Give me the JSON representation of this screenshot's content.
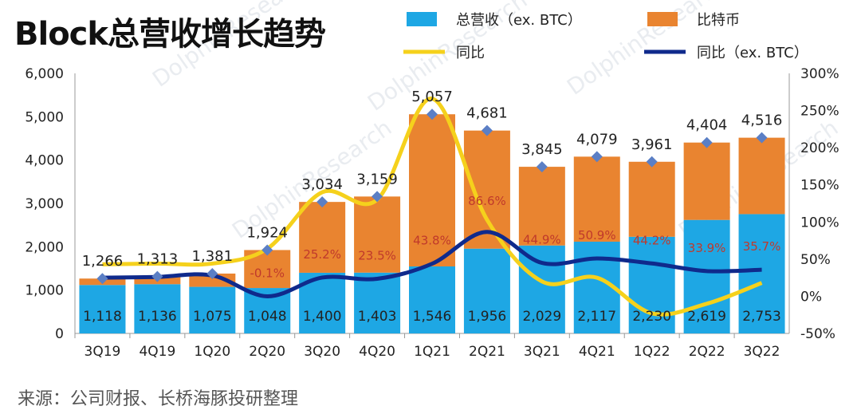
{
  "title": "Block总营收增长趋势",
  "source": "来源：公司财报、长桥海豚投研整理",
  "colors": {
    "revenue_ex_btc": "#1ea7e4",
    "bitcoin": "#e98430",
    "yoy_total": "#f5d11c",
    "yoy_ex_btc": "#0f2a8c",
    "total_marker": "#5b7fc5"
  },
  "chart_data": {
    "type": "bar",
    "stacked": true,
    "categories": [
      "3Q19",
      "4Q19",
      "1Q20",
      "2Q20",
      "3Q20",
      "4Q20",
      "1Q21",
      "2Q21",
      "3Q21",
      "4Q21",
      "1Q22",
      "2Q22",
      "3Q22"
    ],
    "series": [
      {
        "name": "总营收（ex. BTC）",
        "type": "bar",
        "axis": "left",
        "values": [
          1118,
          1136,
          1075,
          1048,
          1400,
          1403,
          1546,
          1956,
          2029,
          2117,
          2230,
          2619,
          2753
        ]
      },
      {
        "name": "比特币",
        "type": "bar",
        "axis": "left",
        "values": [
          148,
          177,
          306,
          876,
          1634,
          1756,
          3511,
          2725,
          1816,
          1962,
          1731,
          1785,
          1763
        ]
      },
      {
        "name": "同比",
        "type": "line",
        "axis": "right",
        "values": [
          43,
          44,
          44,
          64,
          140,
          130,
          266,
          103,
          20,
          25,
          -23,
          -10,
          18
        ]
      },
      {
        "name": "同比（ex. BTC）",
        "type": "line",
        "axis": "right",
        "values": [
          25,
          26,
          28,
          -0.1,
          25.2,
          23.5,
          43.8,
          86.6,
          44.9,
          50.9,
          44.2,
          33.9,
          35.7
        ]
      }
    ],
    "totals": [
      1266,
      1313,
      1381,
      1924,
      3034,
      3159,
      5057,
      4681,
      3845,
      4079,
      3961,
      4404,
      4516
    ],
    "yoy_ex_btc_labels": [
      "",
      "",
      "",
      "-0.1%",
      "25.2%",
      "23.5%",
      "43.8%",
      "86.6%",
      "44.9%",
      "50.9%",
      "44.2%",
      "33.9%",
      "35.7%"
    ],
    "left_axis": {
      "min": 0,
      "max": 6000,
      "ticks": [
        "0",
        "1,000",
        "2,000",
        "3,000",
        "4,000",
        "5,000",
        "6,000"
      ]
    },
    "right_axis": {
      "min": -50,
      "max": 300,
      "ticks": [
        "-50%",
        "0%",
        "50%",
        "100%",
        "150%",
        "200%",
        "250%",
        "300%"
      ]
    },
    "legend_position": "top-right",
    "grid": false
  }
}
